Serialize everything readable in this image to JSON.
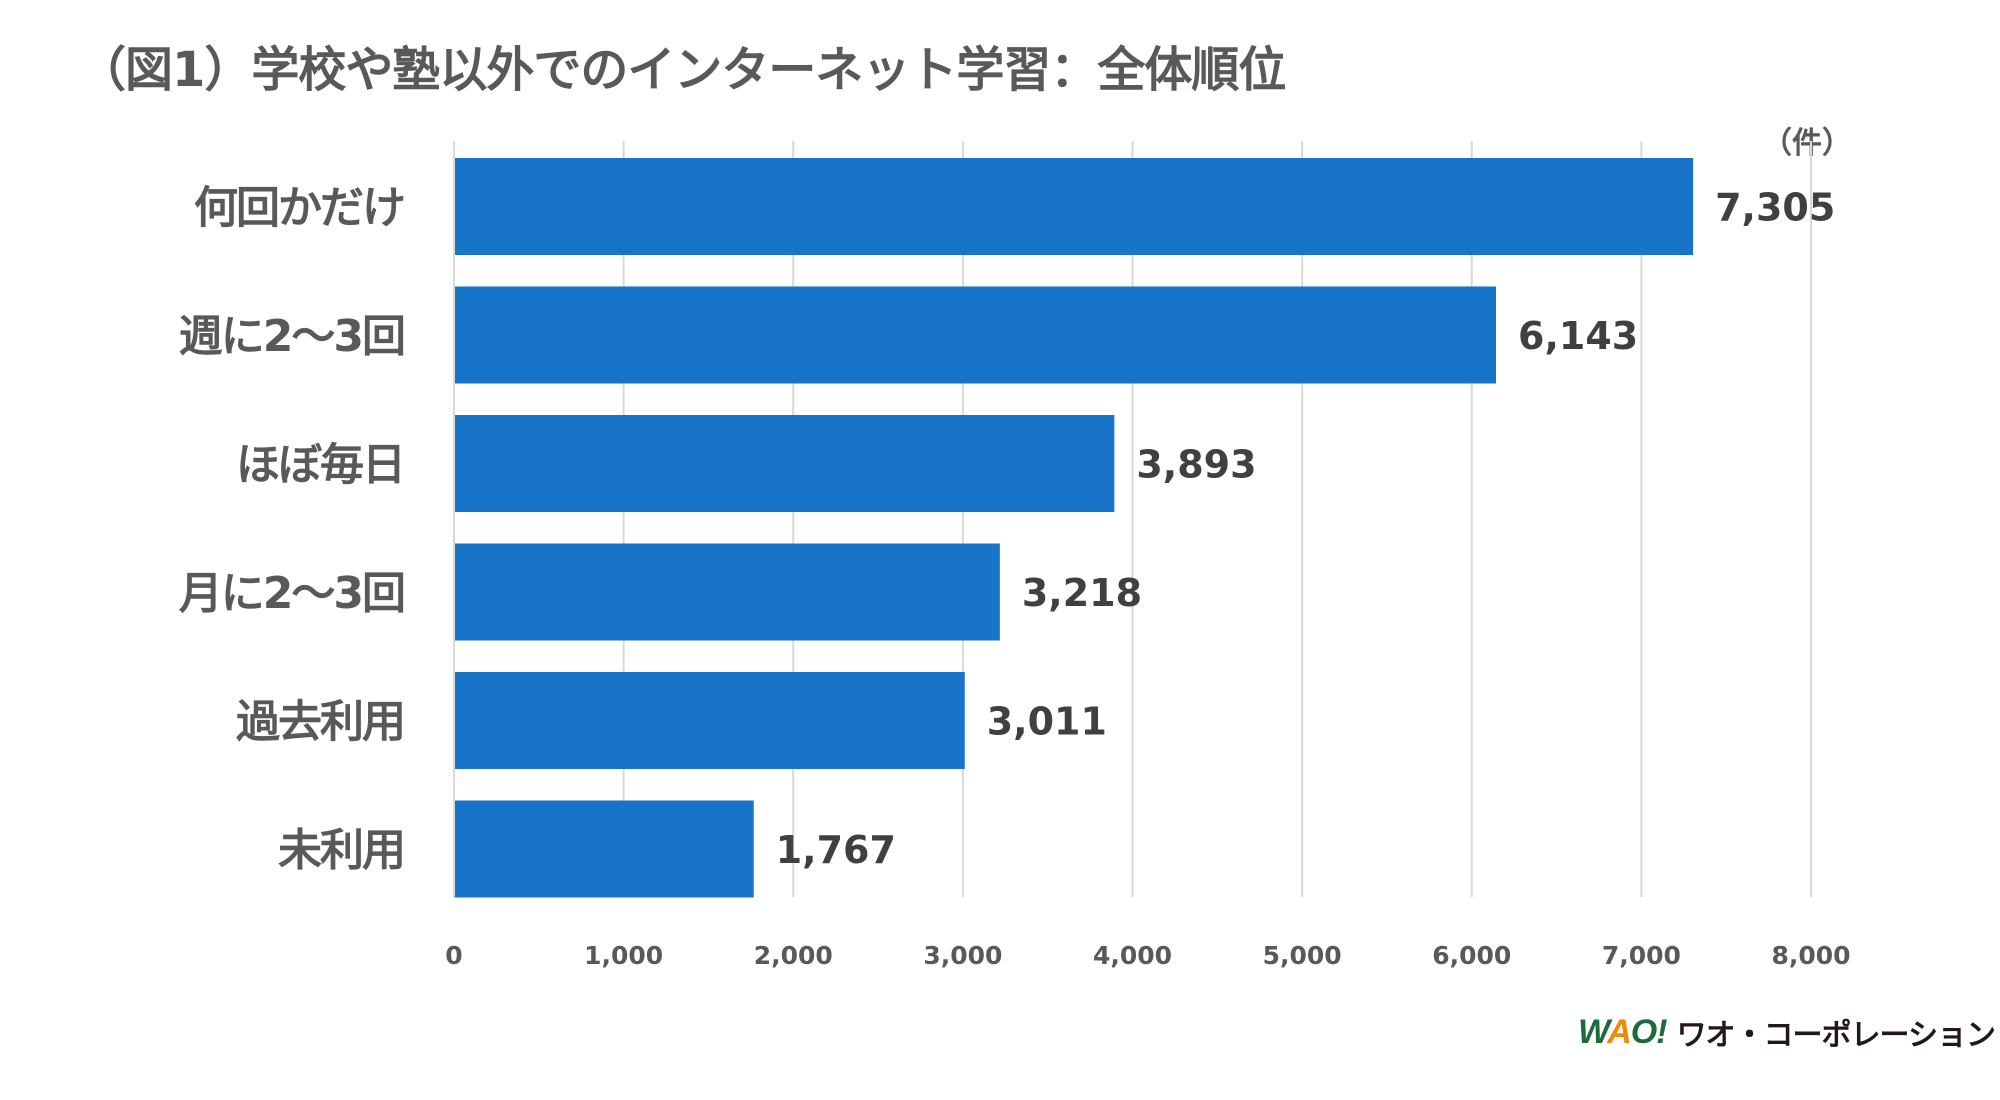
{
  "chart_data": {
    "type": "bar",
    "orientation": "horizontal",
    "title": "（図1）学校や塾以外でのインターネット学習：全体順位",
    "unit_label": "（件）",
    "categories": [
      "何回かだけ",
      "週に2〜3回",
      "ほぼ毎日",
      "月に2〜3回",
      "過去利用",
      "未利用"
    ],
    "values": [
      7305,
      6143,
      3893,
      3218,
      3011,
      1767
    ],
    "value_labels": [
      "7,305",
      "6,143",
      "3,893",
      "3,218",
      "3,011",
      "1,767"
    ],
    "xlim": [
      0,
      8000
    ],
    "x_ticks": [
      0,
      1000,
      2000,
      3000,
      4000,
      5000,
      6000,
      7000,
      8000
    ],
    "x_tick_labels": [
      "0",
      "1,000",
      "2,000",
      "3,000",
      "4,000",
      "5,000",
      "6,000",
      "7,000",
      "8,000"
    ],
    "grid": "vertical",
    "bar_color": "#1874c8",
    "grid_color": "#d9d9d9",
    "text_color": "#595959"
  },
  "logo": {
    "mark": "WAO!",
    "name": "ワオ・コーポレーション"
  }
}
